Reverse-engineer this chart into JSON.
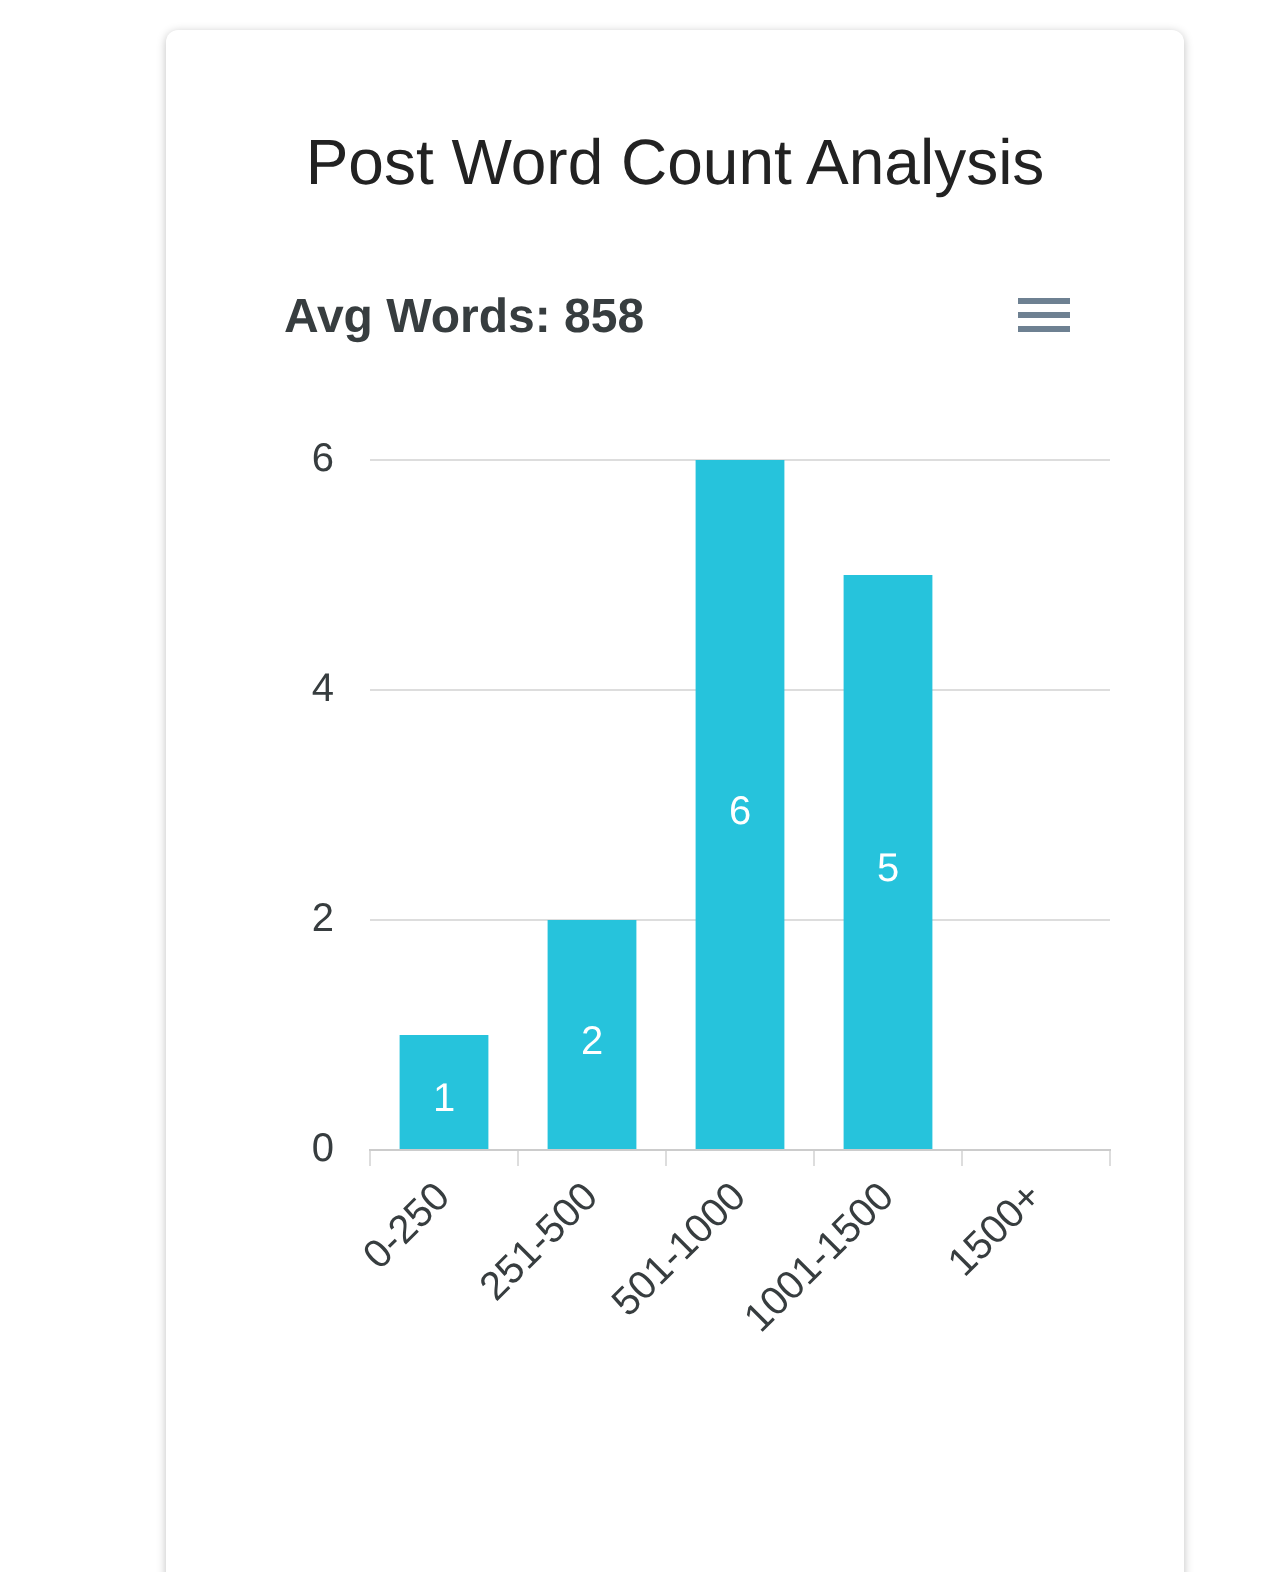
{
  "chart_data": {
    "type": "bar",
    "title": "Post Word Count Analysis",
    "subtitle": "Avg Words: 858",
    "categories": [
      "0-250",
      "251-500",
      "501-1000",
      "1001-1500",
      "1500+"
    ],
    "values": [
      1,
      2,
      6,
      5,
      0
    ],
    "color": "#26c3dc",
    "value_labels": [
      "1",
      "2",
      "6",
      "5",
      null
    ],
    "ylim": [
      0,
      6
    ],
    "yticks": [
      0,
      2,
      4,
      6
    ],
    "grid": "y"
  }
}
